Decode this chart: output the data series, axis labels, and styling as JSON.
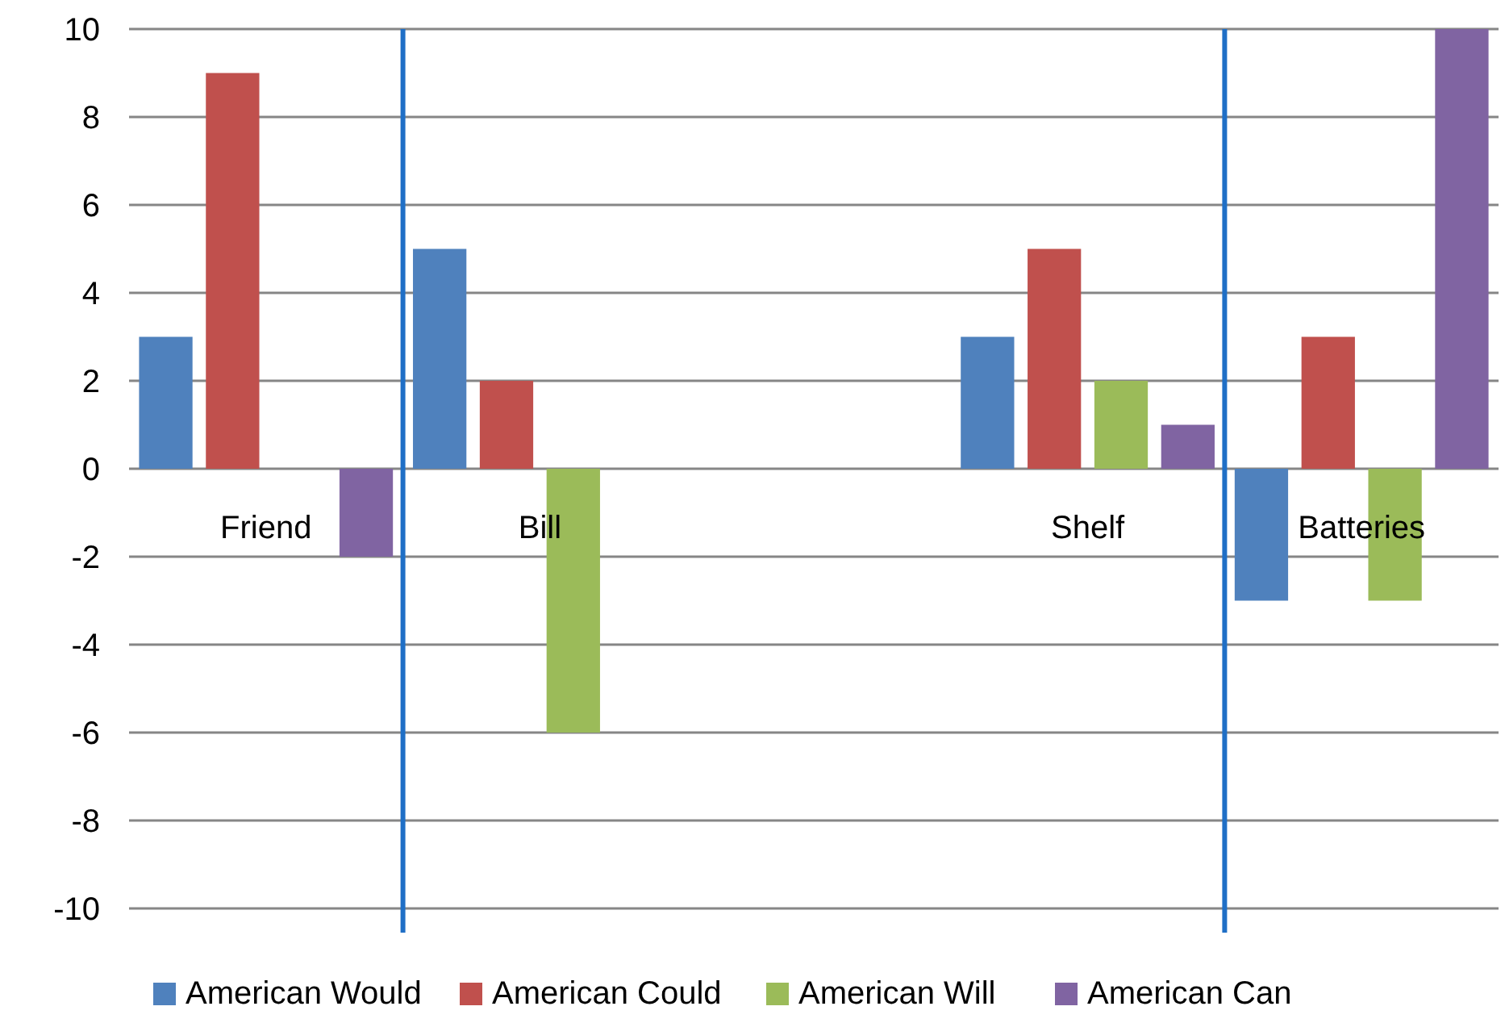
{
  "chart_data": {
    "type": "bar",
    "categories": [
      "Friend",
      "Bill",
      null,
      "Shelf",
      "Batteries"
    ],
    "series": [
      {
        "name": "American Would",
        "color": "#4f81bd",
        "values": [
          3,
          5,
          null,
          3,
          -3
        ]
      },
      {
        "name": "American Could",
        "color": "#c0504d",
        "values": [
          9,
          2,
          null,
          5,
          3
        ]
      },
      {
        "name": "American Will",
        "color": "#9bbb59",
        "values": [
          null,
          -6,
          null,
          2,
          -3
        ]
      },
      {
        "name": "American Can",
        "color": "#8064a2",
        "values": [
          -2,
          null,
          null,
          1,
          10
        ]
      }
    ],
    "ylim": [
      -10,
      10
    ],
    "yticks": [
      -10,
      -8,
      -6,
      -4,
      -2,
      0,
      2,
      4,
      6,
      8,
      10
    ],
    "grid": "y",
    "legend": "bottom"
  }
}
